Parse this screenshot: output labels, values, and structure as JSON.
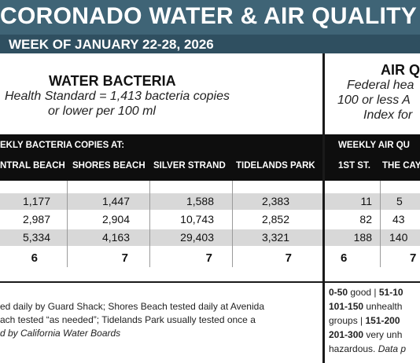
{
  "header": {
    "title": "CORONADO WATER & AIR QUALITY R",
    "subtitle": "WEEK OF JANUARY 22-28, 2026"
  },
  "water": {
    "title": "WATER BACTERIA",
    "standard_line1": "Health Standard  = 1,413 bacteria copies",
    "standard_line2": "or lower per 100 ml",
    "bar_heading": "EKLY BACTERIA COPIES AT:",
    "columns": [
      "NTRAL BEACH",
      "SHORES BEACH",
      "SILVER STRAND",
      "TIDELANDS PARK"
    ],
    "rows": [
      [
        "1,177",
        "1,447",
        "1,588",
        "2,383"
      ],
      [
        "2,987",
        "2,904",
        "10,743",
        "2,852"
      ],
      [
        "5,334",
        "4,163",
        "29,403",
        "3,321"
      ],
      [
        "6",
        "7",
        "7",
        "7"
      ]
    ],
    "footnote_line1": "ed daily by Guard Shack; Shores Beach tested daily at Avenida",
    "footnote_line2": "ach tested “as needed”; Tidelands Park usually tested once a",
    "footnote_line3": "d by California Water Boards"
  },
  "air": {
    "title": "AIR Q",
    "standard_line1": "Federal hea",
    "standard_line2": "100 or less A",
    "standard_line3": "Index for",
    "bar_heading": "WEEKLY AIR QU",
    "columns": [
      "1ST ST.",
      "THE CAY"
    ],
    "rows": [
      [
        "11",
        "5"
      ],
      [
        "82",
        "43"
      ],
      [
        "188",
        "140"
      ],
      [
        "6",
        "7"
      ]
    ],
    "legend": {
      "l1_a": "0-50",
      "l1_b": " good | ",
      "l1_c": "51-10",
      "l2_a": "101-150",
      "l2_b": " unhealth",
      "l3_a": "groups | ",
      "l3_b": "151-200",
      "l4_a": "201-300",
      "l4_b": " very unh",
      "l5_a": "hazardous. ",
      "l5_b": "Data p"
    }
  }
}
